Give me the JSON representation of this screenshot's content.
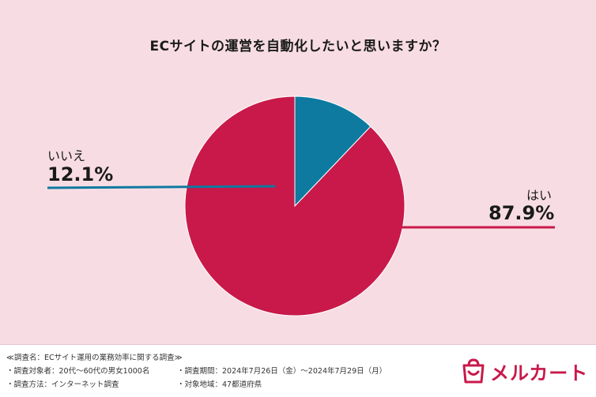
{
  "chart_data": {
    "type": "pie",
    "title": "ECサイトの運営を自動化したいと思いますか？",
    "slices": [
      {
        "label": "はい",
        "value": 87.9,
        "display": "87.9%",
        "color": "#c8194a"
      },
      {
        "label": "いいえ",
        "value": 12.1,
        "display": "12.1%",
        "color": "#0e7aa0"
      }
    ],
    "start": "12 o'clock",
    "direction": "counterclockwise"
  },
  "footer": {
    "line1": "≪調査名：ECサイト運用の業務効率に関する調査≫",
    "line2a": "・調査対象者：20代〜60代の男女1000名",
    "line2b": "・調査期間：2024年7月26日（金）〜2024年7月29日（月）",
    "line3a": "・調査方法：インターネット調査",
    "line3b": "・対象地域：47都道府県"
  },
  "brand": {
    "name": "メルカート",
    "color": "#c8194a"
  }
}
